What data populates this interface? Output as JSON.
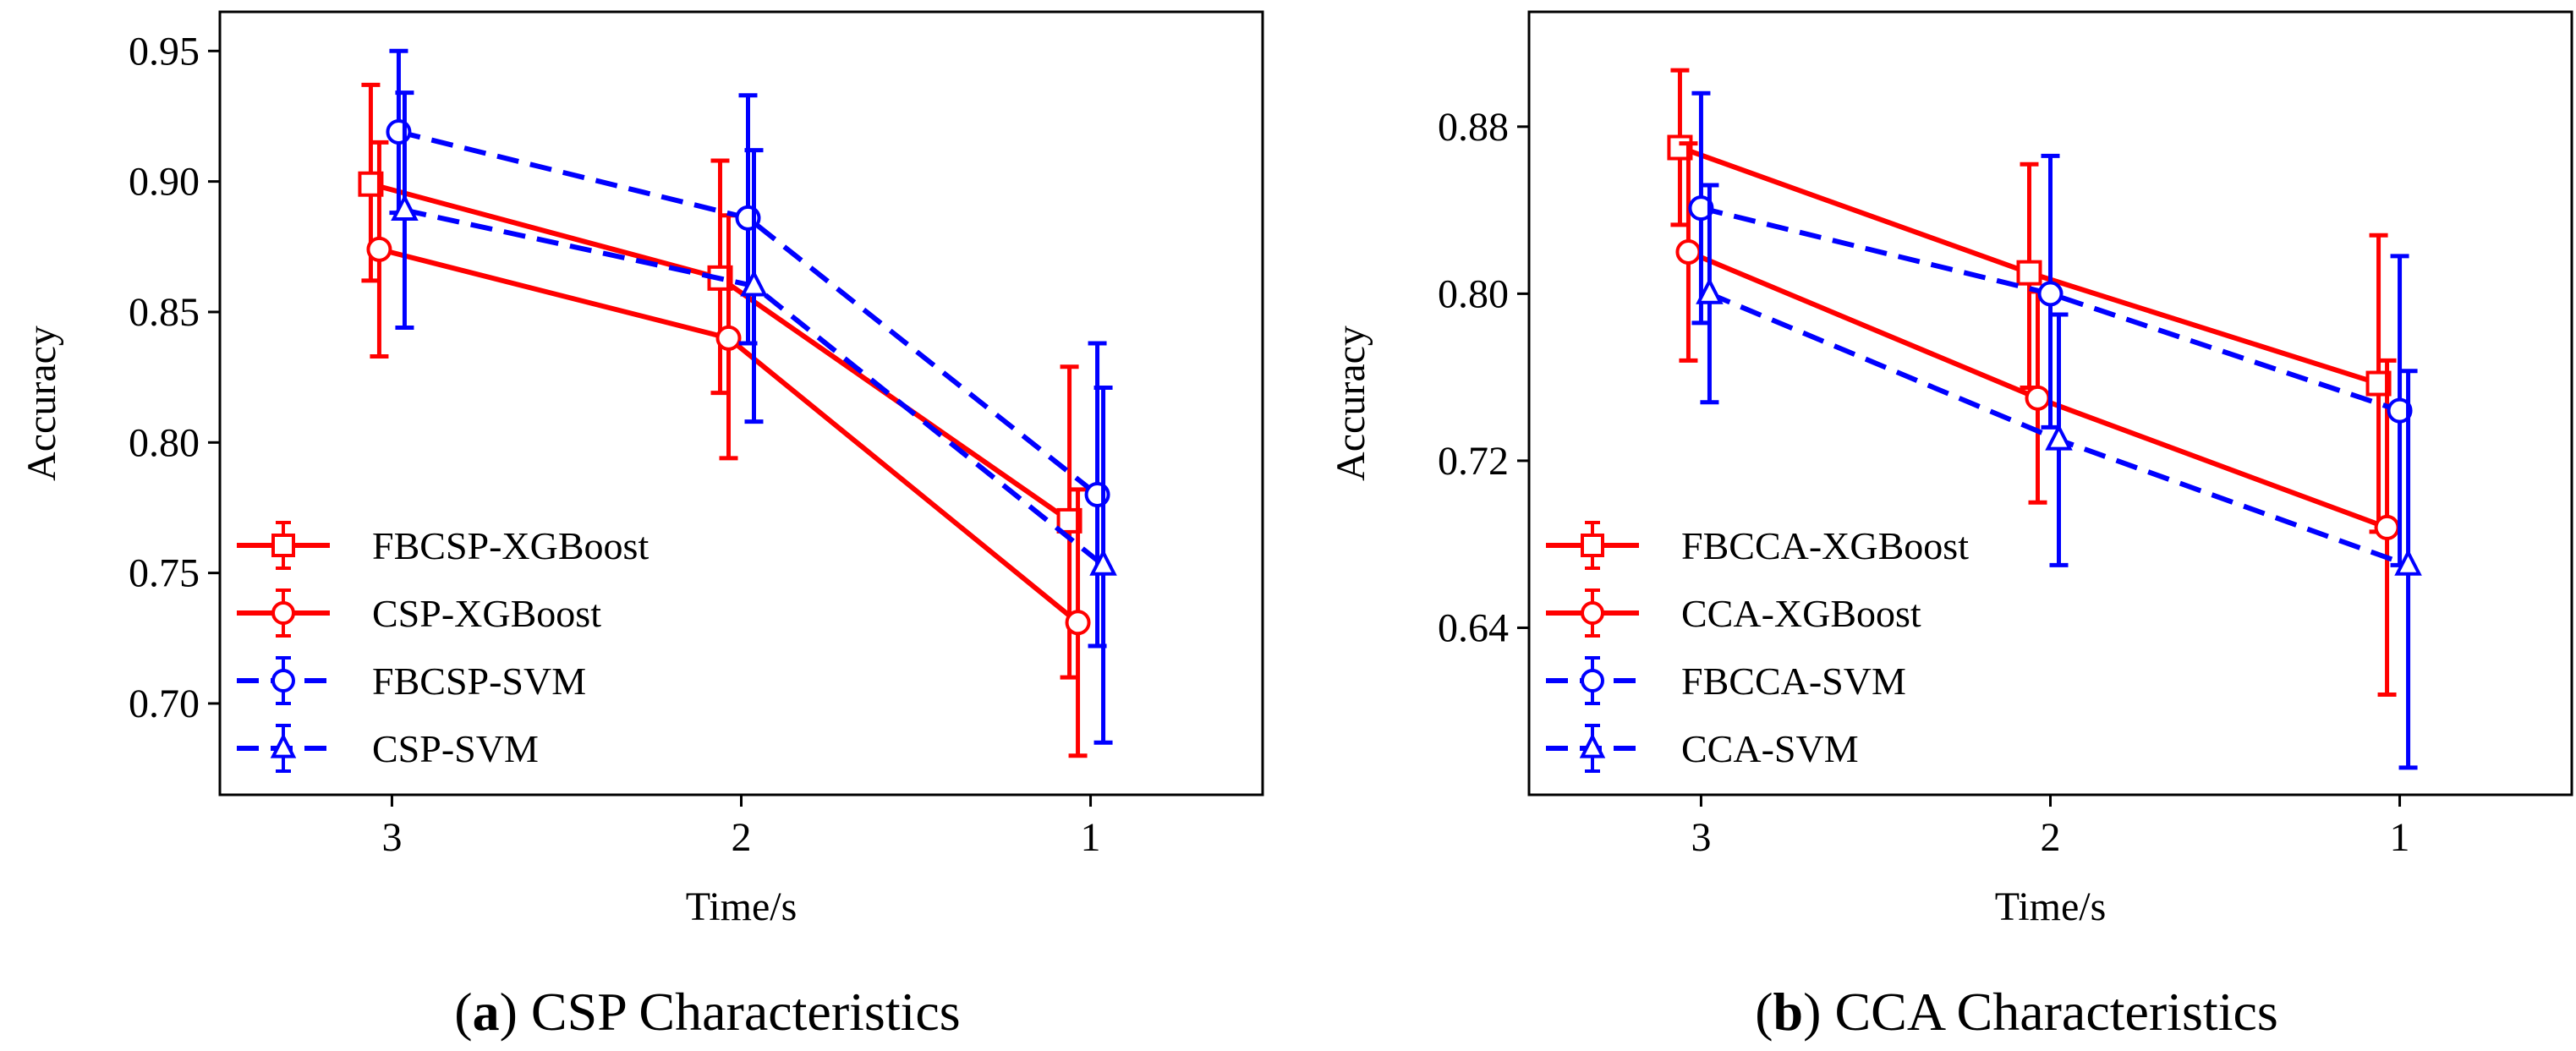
{
  "chart_data": [
    {
      "type": "line",
      "caption_letter": "a",
      "caption_text": "CSP Characteristics",
      "xlabel": "Time/s",
      "ylabel": "Accuracy",
      "categories": [
        "3",
        "2",
        "1"
      ],
      "ylim": [
        0.665,
        0.965
      ],
      "yticks": [
        "0.70",
        "0.75",
        "0.80",
        "0.85",
        "0.90",
        "0.95"
      ],
      "grid": false,
      "legend": "lower-left",
      "series": [
        {
          "name": "FBCSP-XGBoost",
          "color": "#ff0000",
          "dash": "solid",
          "marker": "square",
          "values": [
            0.899,
            0.863,
            0.77
          ],
          "errors": [
            [
              0.862,
              0.937
            ],
            [
              0.819,
              0.908
            ],
            [
              0.71,
              0.829
            ]
          ]
        },
        {
          "name": "CSP-XGBoost",
          "color": "#ff0000",
          "dash": "solid",
          "marker": "circle",
          "values": [
            0.874,
            0.84,
            0.731
          ],
          "errors": [
            [
              0.833,
              0.915
            ],
            [
              0.794,
              0.887
            ],
            [
              0.68,
              0.782
            ]
          ]
        },
        {
          "name": "FBCSP-SVM",
          "color": "#0000ff",
          "dash": "dashed",
          "marker": "circle",
          "values": [
            0.919,
            0.886,
            0.78
          ],
          "errors": [
            [
              0.888,
              0.95
            ],
            [
              0.838,
              0.933
            ],
            [
              0.722,
              0.838
            ]
          ]
        },
        {
          "name": "CSP-SVM",
          "color": "#0000ff",
          "dash": "dashed",
          "marker": "triangle",
          "values": [
            0.889,
            0.86,
            0.753
          ],
          "errors": [
            [
              0.844,
              0.934
            ],
            [
              0.808,
              0.912
            ],
            [
              0.685,
              0.821
            ]
          ]
        }
      ]
    },
    {
      "type": "line",
      "caption_letter": "b",
      "caption_text": "CCA Characteristics",
      "xlabel": "Time/s",
      "ylabel": "Accuracy",
      "categories": [
        "3",
        "2",
        "1"
      ],
      "ylim": [
        0.56,
        0.935
      ],
      "yticks": [
        "0.64",
        "0.72",
        "0.80",
        "0.88"
      ],
      "grid": false,
      "legend": "lower-left",
      "series": [
        {
          "name": "FBCCA-XGBoost",
          "color": "#ff0000",
          "dash": "solid",
          "marker": "square",
          "values": [
            0.87,
            0.81,
            0.757
          ],
          "errors": [
            [
              0.833,
              0.907
            ],
            [
              0.755,
              0.862
            ],
            [
              0.686,
              0.828
            ]
          ]
        },
        {
          "name": "CCA-XGBoost",
          "color": "#ff0000",
          "dash": "solid",
          "marker": "circle",
          "values": [
            0.82,
            0.75,
            0.688
          ],
          "errors": [
            [
              0.768,
              0.872
            ],
            [
              0.7,
              0.801
            ],
            [
              0.608,
              0.768
            ]
          ]
        },
        {
          "name": "FBCCA-SVM",
          "color": "#0000ff",
          "dash": "dashed",
          "marker": "circle",
          "values": [
            0.841,
            0.8,
            0.744
          ],
          "errors": [
            [
              0.786,
              0.896
            ],
            [
              0.736,
              0.866
            ],
            [
              0.67,
              0.818
            ]
          ]
        },
        {
          "name": "CCA-SVM",
          "color": "#0000ff",
          "dash": "dashed",
          "marker": "triangle",
          "values": [
            0.8,
            0.73,
            0.67
          ],
          "errors": [
            [
              0.748,
              0.852
            ],
            [
              0.67,
              0.79
            ],
            [
              0.573,
              0.763
            ]
          ]
        }
      ]
    }
  ]
}
